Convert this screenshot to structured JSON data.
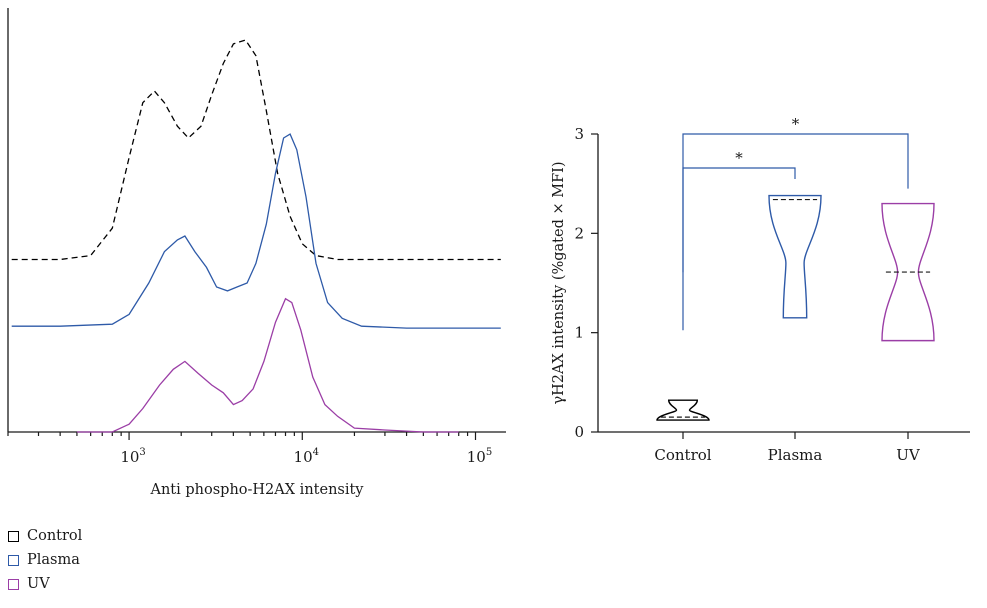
{
  "chart_data": [
    {
      "type": "line",
      "xlabel": "Anti phospho-H2AX intensity",
      "xscale": "log",
      "xlim": [
        200,
        150000
      ],
      "xticks": [
        {
          "base": "10",
          "exp": "3",
          "value": 1000
        },
        {
          "base": "10",
          "exp": "4",
          "value": 10000
        },
        {
          "base": "10",
          "exp": "5",
          "value": 100000
        }
      ],
      "layout": "offset histograms (stacked)",
      "series": [
        {
          "name": "Control",
          "color": "#000000",
          "dash": "dashed",
          "points": [
            [
              210,
              0.44
            ],
            [
              400,
              0.44
            ],
            [
              600,
              0.45
            ],
            [
              800,
              0.52
            ],
            [
              1000,
              0.7
            ],
            [
              1200,
              0.84
            ],
            [
              1400,
              0.87
            ],
            [
              1600,
              0.84
            ],
            [
              1900,
              0.78
            ],
            [
              2200,
              0.75
            ],
            [
              2600,
              0.78
            ],
            [
              3000,
              0.86
            ],
            [
              3500,
              0.94
            ],
            [
              4000,
              0.99
            ],
            [
              4700,
              1.0
            ],
            [
              5400,
              0.96
            ],
            [
              6200,
              0.82
            ],
            [
              7200,
              0.66
            ],
            [
              8500,
              0.55
            ],
            [
              10000,
              0.48
            ],
            [
              12000,
              0.45
            ],
            [
              16000,
              0.44
            ],
            [
              30000,
              0.44
            ],
            [
              60000,
              0.44
            ],
            [
              140000,
              0.44
            ]
          ]
        },
        {
          "name": "Plasma",
          "color": "#2e5aa8",
          "dash": "solid",
          "points": [
            [
              210,
              0.27
            ],
            [
              400,
              0.27
            ],
            [
              800,
              0.275
            ],
            [
              1000,
              0.3
            ],
            [
              1300,
              0.38
            ],
            [
              1600,
              0.46
            ],
            [
              1900,
              0.49
            ],
            [
              2100,
              0.5
            ],
            [
              2400,
              0.46
            ],
            [
              2800,
              0.42
            ],
            [
              3200,
              0.37
            ],
            [
              3700,
              0.36
            ],
            [
              4200,
              0.37
            ],
            [
              4800,
              0.38
            ],
            [
              5400,
              0.43
            ],
            [
              6200,
              0.53
            ],
            [
              7000,
              0.66
            ],
            [
              7800,
              0.75
            ],
            [
              8500,
              0.76
            ],
            [
              9300,
              0.72
            ],
            [
              10500,
              0.6
            ],
            [
              12000,
              0.43
            ],
            [
              14000,
              0.33
            ],
            [
              17000,
              0.29
            ],
            [
              22000,
              0.27
            ],
            [
              40000,
              0.265
            ],
            [
              80000,
              0.265
            ],
            [
              140000,
              0.265
            ]
          ]
        },
        {
          "name": "UV",
          "color": "#9b3ea6",
          "dash": "solid",
          "points": [
            [
              500,
              0.0
            ],
            [
              800,
              0.0
            ],
            [
              1000,
              0.02
            ],
            [
              1200,
              0.06
            ],
            [
              1500,
              0.12
            ],
            [
              1800,
              0.16
            ],
            [
              2100,
              0.18
            ],
            [
              2500,
              0.15
            ],
            [
              3000,
              0.12
            ],
            [
              3500,
              0.1
            ],
            [
              4000,
              0.07
            ],
            [
              4500,
              0.08
            ],
            [
              5200,
              0.11
            ],
            [
              6000,
              0.18
            ],
            [
              7000,
              0.28
            ],
            [
              8000,
              0.34
            ],
            [
              8700,
              0.33
            ],
            [
              9800,
              0.26
            ],
            [
              11500,
              0.14
            ],
            [
              13500,
              0.07
            ],
            [
              16000,
              0.04
            ],
            [
              20000,
              0.01
            ],
            [
              30000,
              0.005
            ],
            [
              50000,
              0.0
            ],
            [
              80000,
              0.0
            ]
          ]
        }
      ]
    },
    {
      "type": "violin",
      "ylabel": "γH2AX intensity (%gated × MFI)",
      "ylim": [
        0,
        3
      ],
      "yticks": [
        0,
        1,
        2,
        3
      ],
      "categories": [
        "Control",
        "Plasma",
        "UV"
      ],
      "groups": [
        {
          "name": "Control",
          "color": "#000000",
          "min": 0.12,
          "median": 0.15,
          "max": 0.32
        },
        {
          "name": "Plasma",
          "color": "#2e5aa8",
          "min": 1.15,
          "median": 2.34,
          "max": 2.38
        },
        {
          "name": "UV",
          "color": "#9b3ea6",
          "min": 0.92,
          "median": 1.61,
          "max": 2.3
        }
      ],
      "annotations": [
        {
          "from": "Control",
          "to": "Plasma",
          "label": "*"
        },
        {
          "from": "Control",
          "to": "UV",
          "label": "*"
        }
      ]
    }
  ],
  "legend": [
    {
      "label": "Control",
      "color": "#000000"
    },
    {
      "label": "Plasma",
      "color": "#2e5aa8"
    },
    {
      "label": "UV",
      "color": "#9b3ea6"
    }
  ]
}
